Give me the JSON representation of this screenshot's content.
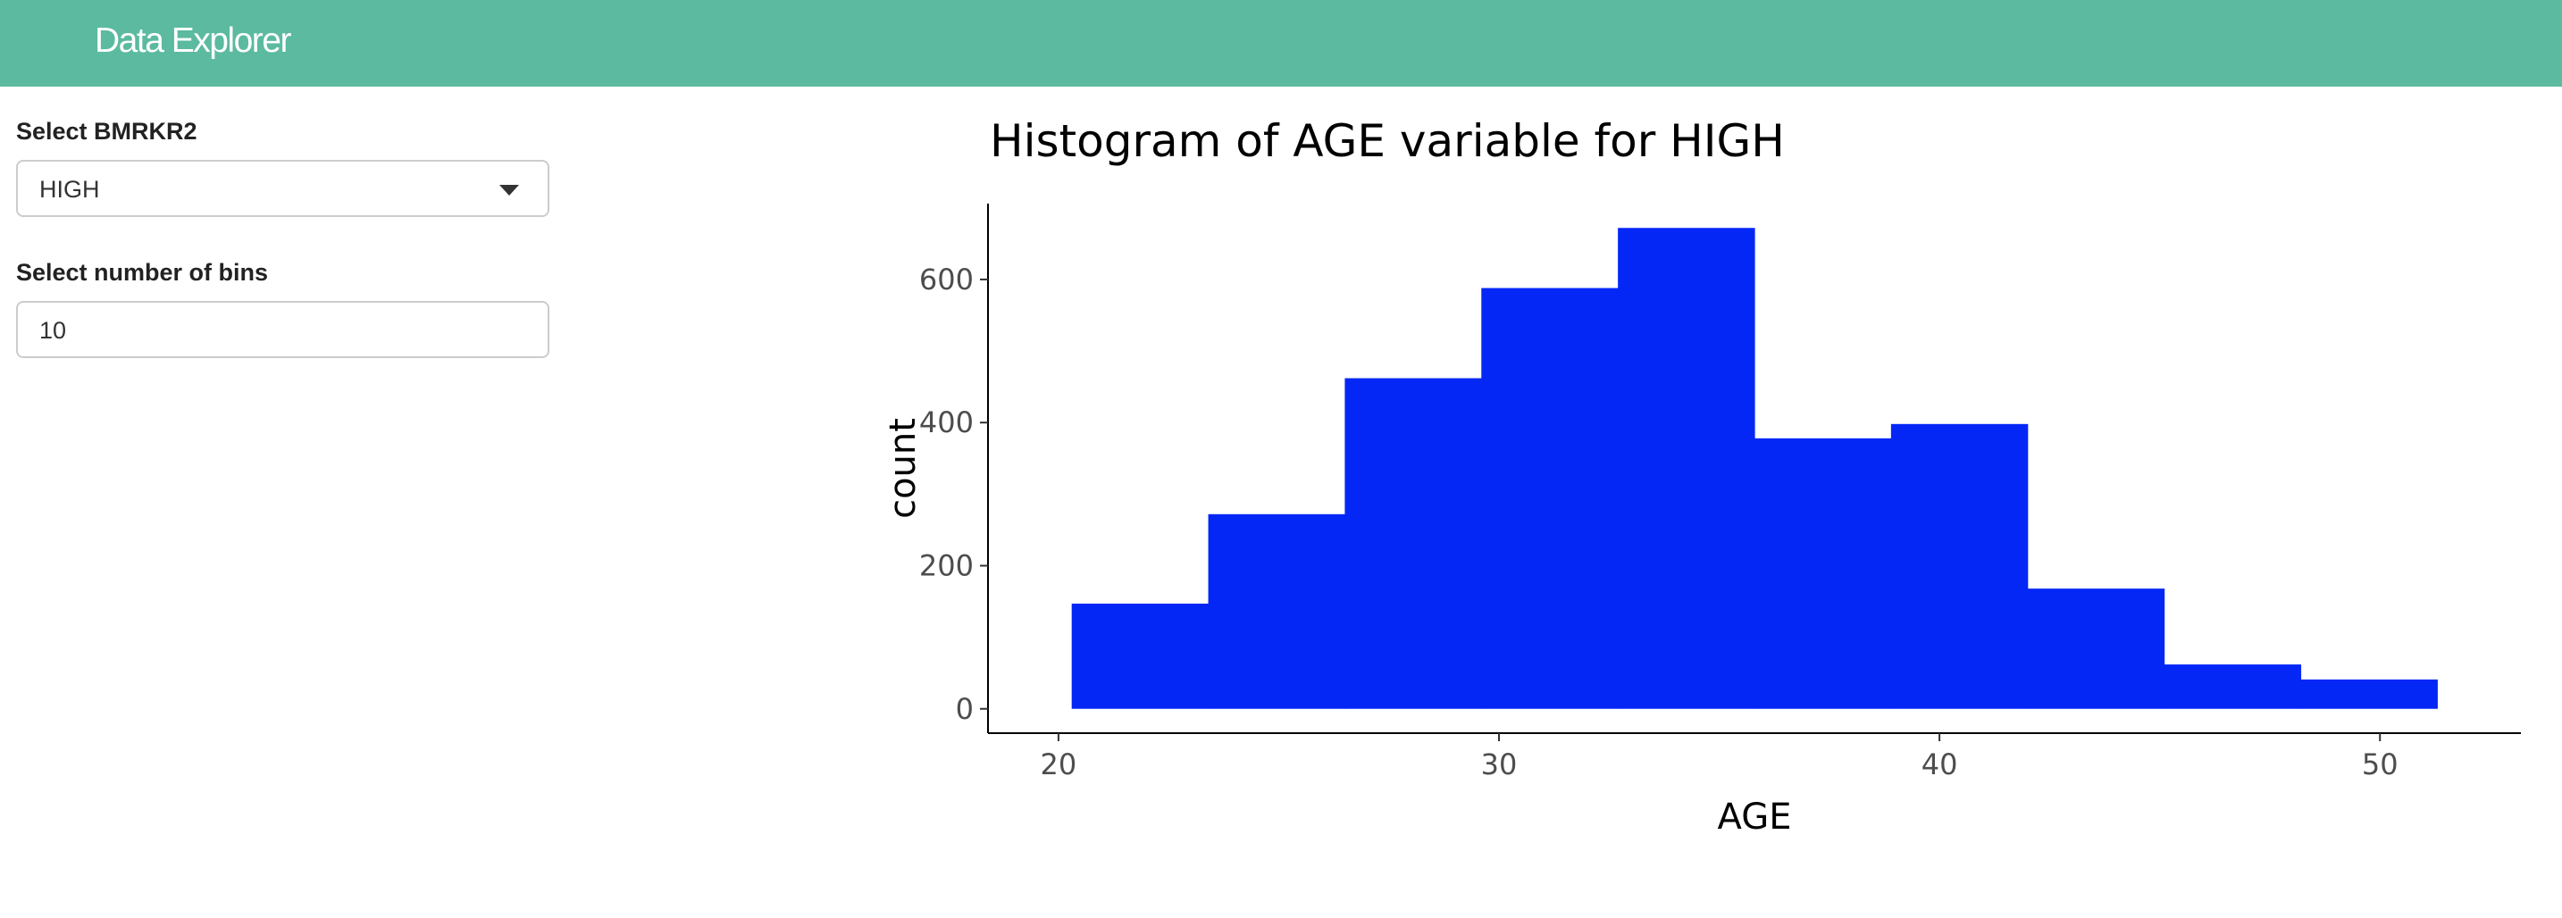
{
  "header": {
    "title": "Data Explorer"
  },
  "sidebar": {
    "marker_select": {
      "label": "Select BMRKR2",
      "value": "HIGH"
    },
    "bins_input": {
      "label": "Select number of bins",
      "value": "10"
    }
  },
  "colors": {
    "header_bg": "#5bba9f",
    "bar_fill": "#0527f6"
  },
  "chart_data": {
    "type": "bar",
    "title": "Histogram of AGE variable for HIGH",
    "xlabel": "AGE",
    "ylabel": "count",
    "bins": [
      {
        "x0": 20.3,
        "x1": 23.4,
        "count": 147
      },
      {
        "x0": 23.4,
        "x1": 26.5,
        "count": 272
      },
      {
        "x0": 26.5,
        "x1": 29.6,
        "count": 462
      },
      {
        "x0": 29.6,
        "x1": 32.7,
        "count": 588
      },
      {
        "x0": 32.7,
        "x1": 35.8,
        "count": 672
      },
      {
        "x0": 35.8,
        "x1": 38.9,
        "count": 378
      },
      {
        "x0": 38.9,
        "x1": 42.0,
        "count": 398
      },
      {
        "x0": 42.0,
        "x1": 45.1,
        "count": 168
      },
      {
        "x0": 45.1,
        "x1": 48.2,
        "count": 62
      },
      {
        "x0": 48.2,
        "x1": 51.3,
        "count": 41
      }
    ],
    "xlim": [
      18.4,
      53.2
    ],
    "ylim": [
      -34,
      706
    ],
    "x_ticks": [
      20,
      30,
      40,
      50
    ],
    "y_ticks": [
      0,
      200,
      400,
      600
    ],
    "grid": false
  }
}
